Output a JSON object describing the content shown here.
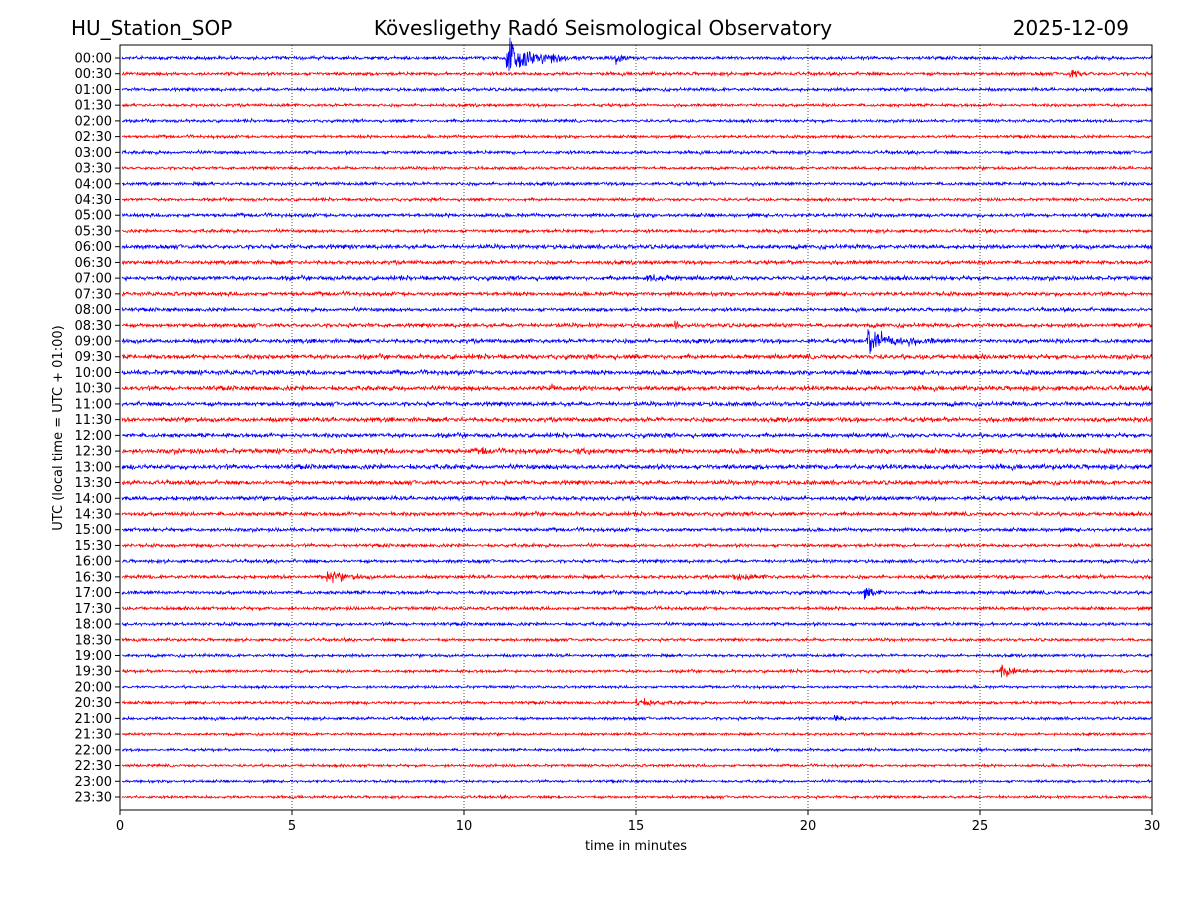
{
  "header": {
    "station": "HU_Station_SOP",
    "title": "Kövesligethy Radó Seismological Observatory",
    "date": "2025-12-09"
  },
  "chart_data": {
    "type": "line",
    "subtype": "helicorder",
    "xlabel": "time in minutes",
    "ylabel": "UTC (local time = UTC + 01:00)",
    "xlim": [
      0,
      30
    ],
    "xticks": [
      "0",
      "5",
      "10",
      "15",
      "20",
      "25",
      "30"
    ],
    "grid": "vertical dotted at every 5 minutes",
    "row_labels": [
      "00:00",
      "00:30",
      "01:00",
      "01:30",
      "02:00",
      "02:30",
      "03:00",
      "03:30",
      "04:00",
      "04:30",
      "05:00",
      "05:30",
      "06:00",
      "06:30",
      "07:00",
      "07:30",
      "08:00",
      "08:30",
      "09:00",
      "09:30",
      "10:00",
      "10:30",
      "11:00",
      "11:30",
      "12:00",
      "12:30",
      "13:00",
      "13:30",
      "14:00",
      "14:30",
      "15:00",
      "15:30",
      "16:00",
      "16:30",
      "17:00",
      "17:30",
      "18:00",
      "18:30",
      "19:00",
      "19:30",
      "20:00",
      "20:30",
      "21:00",
      "21:30",
      "22:00",
      "22:30",
      "23:00",
      "23:30"
    ],
    "row_colors": [
      "#0000ff",
      "#ff0000"
    ],
    "noise_level": [
      1.0,
      1.0,
      1.0,
      0.9,
      0.9,
      0.9,
      1.0,
      0.9,
      1.0,
      0.9,
      1.1,
      1.0,
      1.3,
      1.2,
      1.3,
      1.2,
      1.1,
      1.2,
      1.3,
      1.4,
      1.4,
      1.4,
      1.3,
      1.4,
      1.3,
      1.5,
      1.5,
      1.3,
      1.3,
      1.2,
      1.1,
      1.0,
      1.0,
      1.1,
      1.1,
      1.0,
      1.0,
      0.9,
      0.9,
      0.9,
      0.8,
      0.9,
      0.9,
      0.8,
      0.8,
      0.8,
      0.8,
      0.8
    ],
    "events": [
      {
        "row": "00:00",
        "start_min": 11.2,
        "amplitude": 14,
        "duration_min": 2.5
      },
      {
        "row": "00:00",
        "start_min": 14.4,
        "amplitude": 4,
        "duration_min": 0.6
      },
      {
        "row": "00:30",
        "start_min": 27.6,
        "amplitude": 4,
        "duration_min": 0.8
      },
      {
        "row": "07:00",
        "start_min": 15.3,
        "amplitude": 3,
        "duration_min": 1.5
      },
      {
        "row": "08:30",
        "start_min": 16.1,
        "amplitude": 3,
        "duration_min": 0.3
      },
      {
        "row": "09:00",
        "start_min": 21.7,
        "amplitude": 10,
        "duration_min": 2.2
      },
      {
        "row": "10:30",
        "start_min": 12.5,
        "amplitude": 3,
        "duration_min": 0.4
      },
      {
        "row": "12:30",
        "start_min": 10.5,
        "amplitude": 2.5,
        "duration_min": 0.6
      },
      {
        "row": "12:30",
        "start_min": 13.3,
        "amplitude": 2.5,
        "duration_min": 0.8
      },
      {
        "row": "16:30",
        "start_min": 6.0,
        "amplitude": 4,
        "duration_min": 1.6
      },
      {
        "row": "16:30",
        "start_min": 17.8,
        "amplitude": 2.5,
        "duration_min": 1.5
      },
      {
        "row": "17:00",
        "start_min": 21.6,
        "amplitude": 5,
        "duration_min": 0.8
      },
      {
        "row": "19:30",
        "start_min": 25.6,
        "amplitude": 6,
        "duration_min": 1.2
      },
      {
        "row": "20:30",
        "start_min": 15.0,
        "amplitude": 3,
        "duration_min": 1.5
      },
      {
        "row": "21:00",
        "start_min": 20.7,
        "amplitude": 3,
        "duration_min": 0.7
      }
    ]
  }
}
